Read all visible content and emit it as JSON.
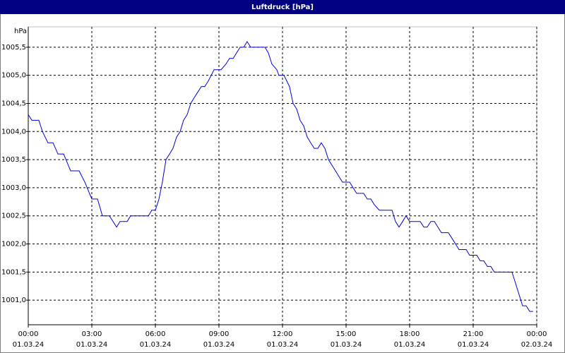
{
  "chart_data": {
    "type": "line",
    "title": "Luftdruck [hPa]",
    "y_label": "hPa",
    "x": [
      0,
      0.17,
      0.5,
      0.67,
      0.93,
      1.17,
      1.4,
      1.67,
      2,
      2.4,
      2.67,
      3,
      3.27,
      3.5,
      3.83,
      4.17,
      4.33,
      4.67,
      4.83,
      5.67,
      5.83,
      6,
      6.17,
      6.33,
      6.5,
      6.67,
      6.83,
      7,
      7.17,
      7.33,
      7.5,
      7.67,
      7.83,
      8,
      8.17,
      8.33,
      8.5,
      8.77,
      9.1,
      9.33,
      9.5,
      9.67,
      10,
      10.17,
      10.33,
      10.5,
      11.17,
      11.33,
      11.5,
      11.73,
      11.83,
      12.07,
      12.33,
      12.5,
      12.67,
      12.83,
      13,
      13.17,
      13.33,
      13.5,
      13.67,
      13.83,
      14,
      14.17,
      14.5,
      14.83,
      15.17,
      15.33,
      15.5,
      15.83,
      16,
      16.17,
      16.33,
      16.57,
      17.17,
      17.33,
      17.5,
      17.67,
      17.83,
      18,
      18.5,
      18.67,
      18.83,
      19,
      19.17,
      19.5,
      19.83,
      20,
      20.33,
      20.67,
      20.83,
      21.17,
      21.33,
      21.5,
      21.67,
      21.83,
      22,
      22.83,
      23,
      23.33,
      23.5,
      23.67,
      23.83
    ],
    "series": [
      {
        "color": "#0000e0",
        "values": [
          1004.3,
          1004.2,
          1004.2,
          1004,
          1003.8,
          1003.8,
          1003.6,
          1003.6,
          1003.3,
          1003.3,
          1003.1,
          1002.8,
          1002.8,
          1002.5,
          1002.5,
          1002.3,
          1002.4,
          1002.4,
          1002.5,
          1002.5,
          1002.6,
          1002.6,
          1002.8,
          1003.1,
          1003.5,
          1003.6,
          1003.7,
          1003.9,
          1004,
          1004.2,
          1004.3,
          1004.5,
          1004.6,
          1004.7,
          1004.8,
          1004.8,
          1004.9,
          1005.1,
          1005.1,
          1005.2,
          1005.3,
          1005.3,
          1005.5,
          1005.5,
          1005.6,
          1005.5,
          1005.5,
          1005.4,
          1005.2,
          1005.1,
          1005,
          1005,
          1004.8,
          1004.5,
          1004.4,
          1004.2,
          1004.1,
          1003.9,
          1003.8,
          1003.7,
          1003.7,
          1003.8,
          1003.7,
          1003.5,
          1003.3,
          1003.1,
          1003.1,
          1003,
          1002.9,
          1002.9,
          1002.8,
          1002.8,
          1002.7,
          1002.6,
          1002.6,
          1002.4,
          1002.3,
          1002.4,
          1002.5,
          1002.4,
          1002.4,
          1002.3,
          1002.3,
          1002.4,
          1002.4,
          1002.2,
          1002.2,
          1002.1,
          1001.9,
          1001.9,
          1001.8,
          1001.8,
          1001.7,
          1001.7,
          1001.6,
          1001.6,
          1001.5,
          1001.5,
          1001.3,
          1000.9,
          1000.9,
          1000.8,
          1000.8
        ]
      }
    ],
    "xlim": [
      0,
      24
    ],
    "xticks": [
      {
        "value": 0,
        "label": "00:00"
      },
      {
        "value": 3,
        "label": "03:00"
      },
      {
        "value": 6,
        "label": "06:00"
      },
      {
        "value": 9,
        "label": "09:00"
      },
      {
        "value": 12,
        "label": "12:00"
      },
      {
        "value": 15,
        "label": "15:00"
      },
      {
        "value": 18,
        "label": "18:00"
      },
      {
        "value": 21,
        "label": "21:00"
      },
      {
        "value": 24,
        "label": "00:00"
      }
    ],
    "xtick_dates": [
      "01.03.24",
      "01.03.24",
      "01.03.24",
      "01.03.24",
      "01.03.24",
      "01.03.24",
      "01.03.24",
      "01.03.24",
      "02.03.24"
    ],
    "ylim": [
      1000.5625,
      1005.8625
    ],
    "yticks": [
      {
        "value": 1001,
        "label": "1001,0"
      },
      {
        "value": 1001.5,
        "label": "1001,5"
      },
      {
        "value": 1002,
        "label": "1002,0"
      },
      {
        "value": 1002.5,
        "label": "1002,5"
      },
      {
        "value": 1003,
        "label": "1003,0"
      },
      {
        "value": 1003.5,
        "label": "1003,5"
      },
      {
        "value": 1004,
        "label": "1004,0"
      },
      {
        "value": 1004.5,
        "label": "1004,5"
      },
      {
        "value": 1005,
        "label": "1005,0"
      },
      {
        "value": 1005.5,
        "label": "1005,5"
      }
    ],
    "grid": true
  }
}
